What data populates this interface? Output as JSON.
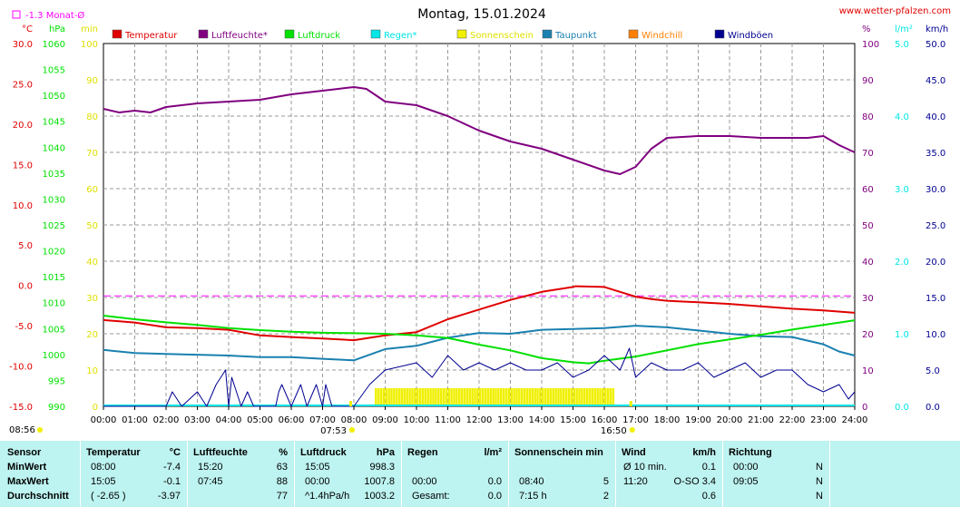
{
  "site": "www.wetter-pfalzen.com",
  "title": "Montag, 15.01.2024",
  "monthly_avg_label": "-1.3 Monat-Ø",
  "axis_units": {
    "temp": "°C",
    "pressure": "hPa",
    "sun": "min",
    "hum": "%",
    "rain": "l/m²",
    "wind": "km/h"
  },
  "colors": {
    "temp": "#e00000",
    "hum": "#800080",
    "pressure": "#00e000",
    "rain": "#00e5e5",
    "sun": "#f0f000",
    "dew": "#1a80b0",
    "windchill": "#ff8000",
    "gust": "#000090",
    "grid": "#999999",
    "avg": "#ff00ff"
  },
  "legend": [
    {
      "key": "temp",
      "label": "Temperatur"
    },
    {
      "key": "hum",
      "label": "Luftfeuchte*"
    },
    {
      "key": "pressure",
      "label": "Luftdruck"
    },
    {
      "key": "rain",
      "label": "Regen*"
    },
    {
      "key": "sun",
      "label": "Sonnenschein"
    },
    {
      "key": "dew",
      "label": "Taupunkt"
    },
    {
      "key": "windchill",
      "label": "Windchill"
    },
    {
      "key": "gust",
      "label": "Windböen"
    }
  ],
  "sunrise": "07:53",
  "sunset": "16:50",
  "corner_time": "08:56",
  "chart_data": {
    "type": "line",
    "title": "Montag, 15.01.2024",
    "x_ticks": [
      "00:00",
      "01:00",
      "02:00",
      "03:00",
      "04:00",
      "05:00",
      "06:00",
      "07:00",
      "08:00",
      "09:00",
      "10:00",
      "11:00",
      "12:00",
      "13:00",
      "14:00",
      "15:00",
      "16:00",
      "17:00",
      "18:00",
      "19:00",
      "20:00",
      "21:00",
      "22:00",
      "23:00",
      "24:00"
    ],
    "axes": {
      "temp": {
        "unit": "°C",
        "ylim": [
          -15,
          30
        ],
        "ticks": [
          "30.0",
          "25.0",
          "20.0",
          "15.0",
          "10.0",
          "5.0",
          "0.0",
          "-5.0",
          "-10.0",
          "-15.0"
        ]
      },
      "pressure": {
        "unit": "hPa",
        "ylim": [
          990,
          1060
        ],
        "ticks": [
          "1060",
          "1055",
          "1050",
          "1045",
          "1040",
          "1035",
          "1030",
          "1025",
          "1020",
          "1015",
          "1010",
          "1005",
          "1000",
          "995",
          "990"
        ]
      },
      "sun": {
        "unit": "min",
        "ylim": [
          0,
          100
        ],
        "ticks": [
          "100",
          "90",
          "80",
          "70",
          "60",
          "50",
          "40",
          "30",
          "20",
          "10",
          "0"
        ]
      },
      "hum": {
        "unit": "%",
        "ylim": [
          0,
          100
        ],
        "ticks": [
          "100",
          "90",
          "80",
          "70",
          "60",
          "50",
          "40",
          "30",
          "20",
          "10",
          "0"
        ]
      },
      "rain": {
        "unit": "l/m²",
        "ylim": [
          0,
          5
        ],
        "ticks": [
          "5.0",
          "4.0",
          "3.0",
          "2.0",
          "1.0",
          "0.0"
        ]
      },
      "wind": {
        "unit": "km/h",
        "ylim": [
          0,
          50
        ],
        "ticks": [
          "50.0",
          "45.0",
          "40.0",
          "35.0",
          "30.0",
          "25.0",
          "20.0",
          "15.0",
          "10.0",
          "5.0",
          "0.0"
        ]
      }
    },
    "monthly_avg_temp": -1.3,
    "series": [
      {
        "name": "Luftfeuchte*",
        "axis": "hum",
        "x": [
          0,
          0.5,
          1,
          1.5,
          2,
          3,
          4,
          5,
          6,
          7,
          7.5,
          8,
          8.4,
          9,
          10,
          11,
          12,
          13,
          14,
          15,
          16,
          16.5,
          17,
          17.5,
          18,
          19,
          20,
          21,
          22,
          22.5,
          23,
          23.5,
          24
        ],
        "values": [
          82,
          81,
          81.5,
          81,
          82.5,
          83.5,
          84,
          84.5,
          86,
          87,
          87.5,
          88,
          87.5,
          84,
          83,
          80,
          76,
          73,
          71,
          68,
          65,
          64,
          66,
          71,
          74,
          74.5,
          74.5,
          74,
          74,
          74,
          74.5,
          72,
          70
        ]
      },
      {
        "name": "Temperatur",
        "axis": "temp",
        "x": [
          0,
          1,
          2,
          3,
          4,
          5,
          6,
          7,
          8,
          9,
          10,
          11,
          12,
          13,
          14,
          15,
          15.08,
          16,
          16.5,
          17,
          17.5,
          18,
          19,
          20,
          21,
          22,
          23,
          24
        ],
        "values": [
          -4.3,
          -4.6,
          -5.2,
          -5.3,
          -5.5,
          -6.2,
          -6.4,
          -6.6,
          -6.8,
          -6.2,
          -5.8,
          -4.2,
          -3.0,
          -1.8,
          -0.8,
          -0.2,
          -0.1,
          -0.2,
          -0.8,
          -1.4,
          -1.7,
          -1.9,
          -2.1,
          -2.3,
          -2.6,
          -2.9,
          -3.1,
          -3.4
        ]
      },
      {
        "name": "Taupunkt",
        "axis": "temp",
        "x": [
          0,
          1,
          2,
          3,
          4,
          5,
          6,
          7,
          8,
          9,
          10,
          11,
          12,
          13,
          14,
          15,
          16,
          17,
          18,
          19,
          20,
          21,
          22,
          23,
          23.5,
          24
        ],
        "values": [
          -8.0,
          -8.4,
          -8.5,
          -8.6,
          -8.7,
          -8.9,
          -8.9,
          -9.1,
          -9.3,
          -7.9,
          -7.5,
          -6.5,
          -5.9,
          -6.0,
          -5.5,
          -5.4,
          -5.3,
          -5.0,
          -5.2,
          -5.6,
          -6.0,
          -6.3,
          -6.4,
          -7.3,
          -8.2,
          -8.7
        ]
      },
      {
        "name": "Luftdruck",
        "axis": "pressure",
        "x": [
          0,
          1,
          2,
          3,
          4,
          5,
          6,
          7,
          8,
          9,
          10,
          11,
          12,
          13,
          14,
          15,
          15.5,
          16,
          17,
          18,
          19,
          20,
          21,
          22,
          23,
          24
        ],
        "values": [
          1007.5,
          1006.8,
          1006.2,
          1005.7,
          1005.1,
          1004.7,
          1004.4,
          1004.2,
          1004.1,
          1004.0,
          1003.7,
          1003.2,
          1001.9,
          1000.8,
          999.3,
          998.5,
          998.3,
          998.8,
          999.6,
          1000.8,
          1002.0,
          1002.9,
          1003.8,
          1004.8,
          1005.7,
          1006.6
        ]
      },
      {
        "name": "Windböen",
        "axis": "wind",
        "x": [
          0,
          1.5,
          2,
          2.2,
          2.5,
          3,
          3.3,
          3.6,
          3.9,
          4,
          4.1,
          4.4,
          4.6,
          4.8,
          5,
          5.5,
          5.6,
          5.7,
          6,
          6.3,
          6.5,
          6.8,
          7,
          7.1,
          7.3,
          7.5,
          8,
          8.5,
          9,
          10,
          10.5,
          11,
          11.5,
          12,
          12.5,
          13,
          13.5,
          14,
          14.5,
          15,
          15.5,
          16,
          16.5,
          16.8,
          17,
          17.5,
          18,
          18.5,
          19,
          19.5,
          20,
          20.5,
          21,
          21.5,
          22,
          22.5,
          23,
          23.5,
          23.8,
          24
        ],
        "values": [
          0,
          0,
          0,
          2,
          0,
          2,
          0,
          3,
          5,
          0,
          4,
          0,
          2,
          0,
          0,
          0,
          2,
          3,
          0,
          3,
          0,
          3,
          0,
          3,
          0,
          0,
          0,
          3,
          5,
          6,
          4,
          7,
          5,
          6,
          5,
          6,
          5,
          5,
          6,
          4,
          5,
          7,
          5,
          8,
          4,
          6,
          5,
          5,
          6,
          4,
          5,
          6,
          4,
          5,
          5,
          3,
          2,
          3,
          1,
          2
        ]
      }
    ],
    "sunshine_bars": {
      "axis": "sun",
      "start": "08:40",
      "end": "16:20",
      "value": 5
    },
    "rain_values": [],
    "legend_position": "top"
  },
  "stats": {
    "columns": {
      "sensor": "Sensor",
      "temp": {
        "title": "Temperatur",
        "unit": "°C"
      },
      "hum": {
        "title": "Luftfeuchte",
        "unit": "%"
      },
      "press": {
        "title": "Luftdruck",
        "unit": "hPa"
      },
      "rain": {
        "title": "Regen",
        "unit": "l/m²"
      },
      "sun": {
        "title": "Sonnenschein min"
      },
      "wind": {
        "title": "Wind",
        "unit": "km/h"
      },
      "dir": {
        "title": "Richtung"
      }
    },
    "rows": [
      {
        "label": "MinWert",
        "temp_t": "08:00",
        "temp_v": "-7.4",
        "hum_t": "15:20",
        "hum_v": "63",
        "press_t": "15:05",
        "press_v": "998.3",
        "rain_t": "",
        "rain_v": "",
        "sun_t": "",
        "sun_v": "",
        "wind_t": "Ø 10 min.",
        "wind_v": "0.1",
        "dir_t": "00:00",
        "dir_v": "N"
      },
      {
        "label": "MaxWert",
        "temp_t": "15:05",
        "temp_v": "-0.1",
        "hum_t": "07:45",
        "hum_v": "88",
        "press_t": "00:00",
        "press_v": "1007.8",
        "rain_t": "00:00",
        "rain_v": "0.0",
        "sun_t": "08:40",
        "sun_v": "5",
        "wind_t": "11:20",
        "wind_v": "O-SO 3.4",
        "dir_t": "09:05",
        "dir_v": "N"
      },
      {
        "label": "Durchschnitt",
        "temp_t": "( -2.65 )",
        "temp_v": "-3.97",
        "hum_t": "",
        "hum_v": "77",
        "press_t": "^1.4hPa/h",
        "press_v": "1003.2",
        "rain_t": "Gesamt:",
        "rain_v": "0.0",
        "sun_t": "7:15 h",
        "sun_v": "2",
        "wind_t": "",
        "wind_v": "0.6",
        "dir_t": "",
        "dir_v": "N"
      }
    ]
  }
}
